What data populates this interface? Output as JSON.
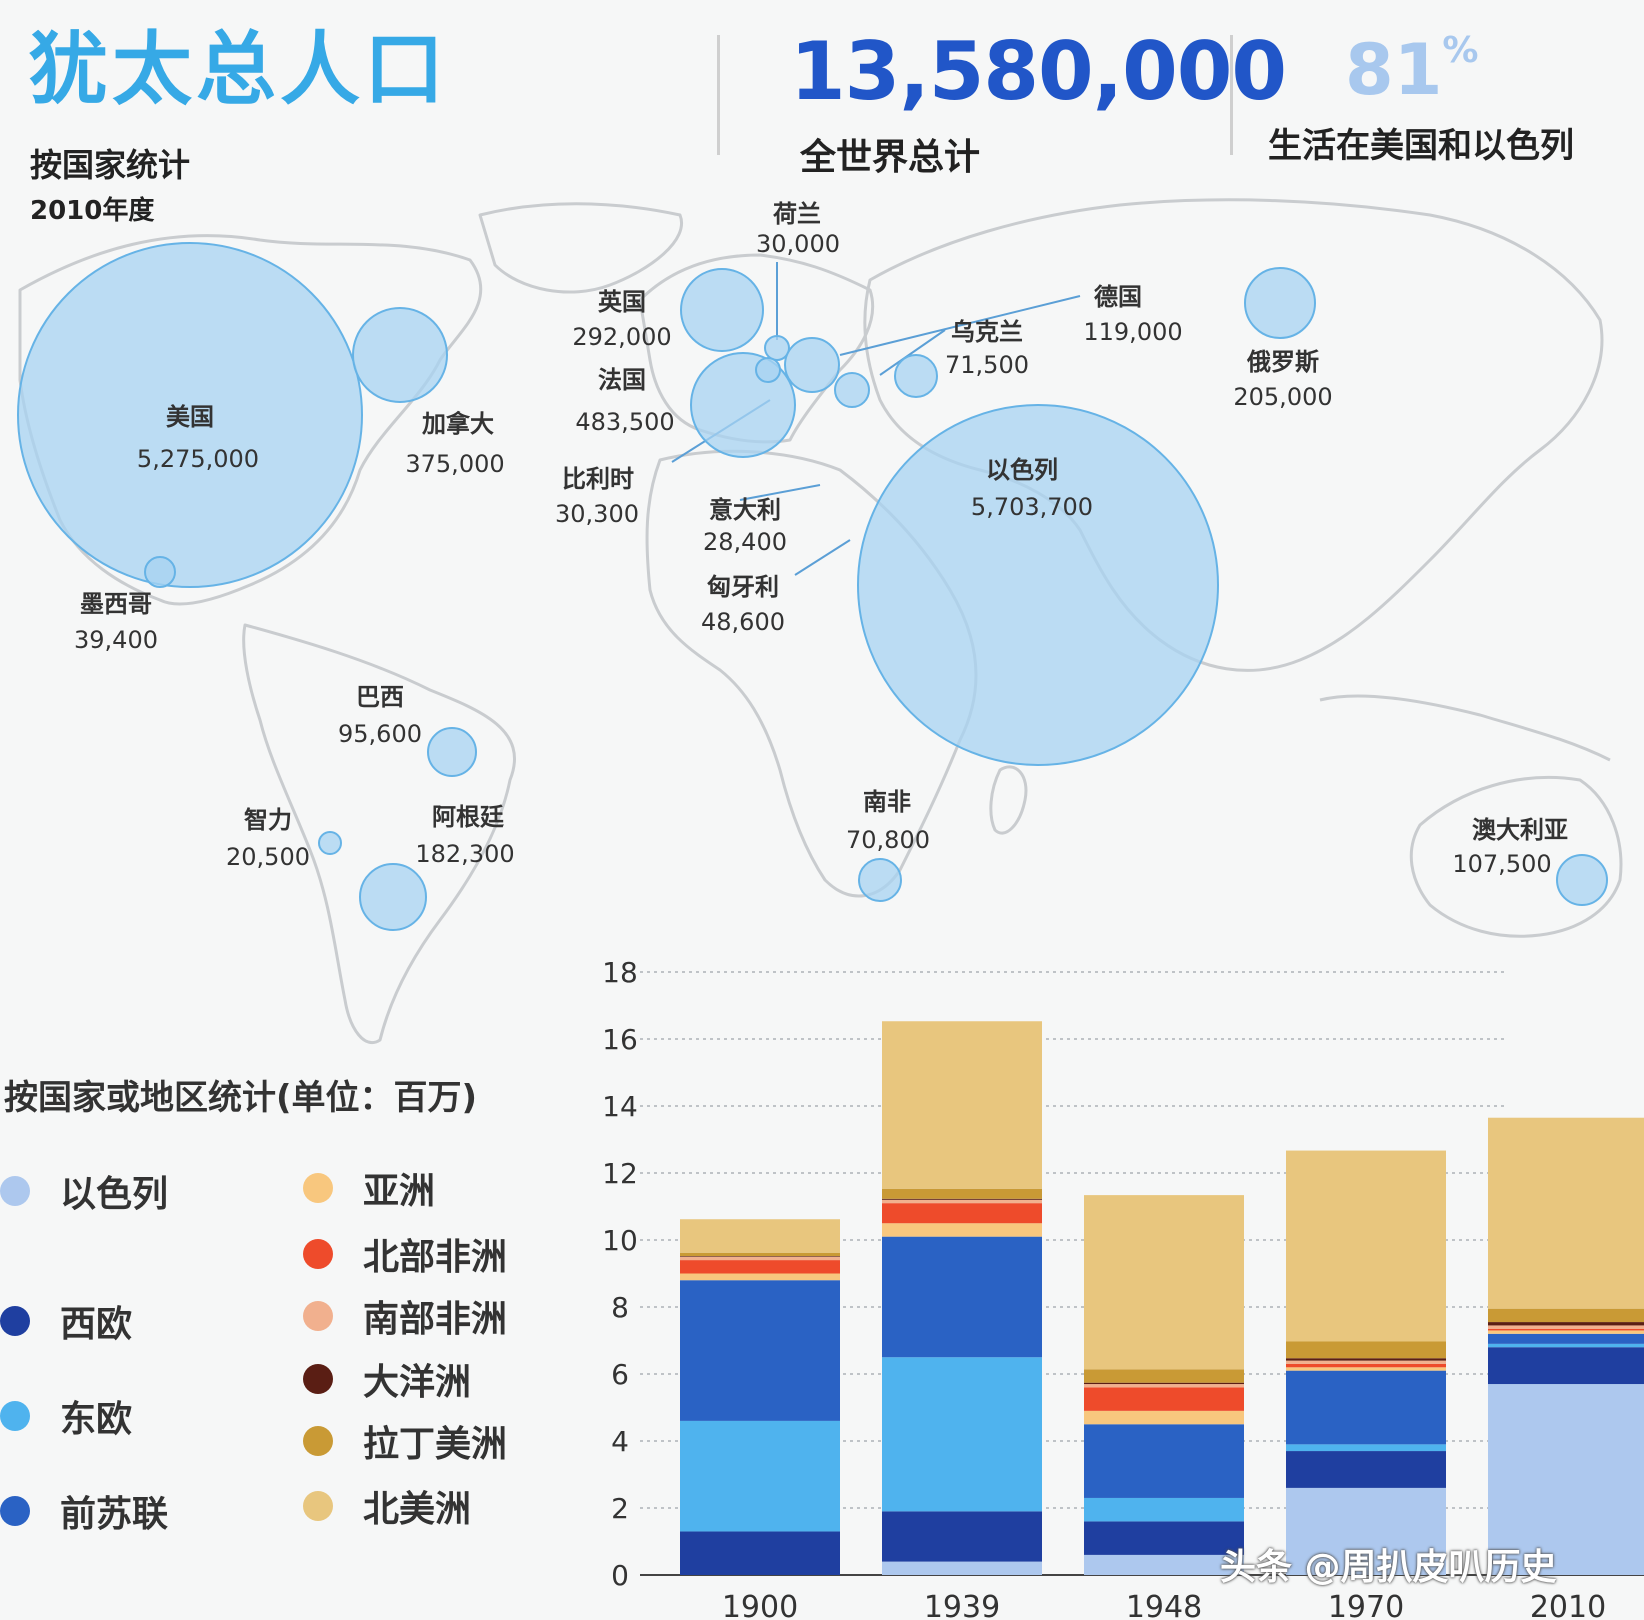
{
  "header": {
    "title": "犹太总人口",
    "subtitle": "按国家统计",
    "year": "2010年度",
    "world_total": "13,580,000",
    "world_total_label": "全世界总计",
    "share_value": "81",
    "share_unit": "%",
    "share_label": "生活在美国和以色列"
  },
  "map": {
    "bubble_color": "#a7d3f2",
    "countries": [
      {
        "name": "美国",
        "value": "5,275,000"
      },
      {
        "name": "加拿大",
        "value": "375,000"
      },
      {
        "name": "墨西哥",
        "value": "39,400"
      },
      {
        "name": "巴西",
        "value": "95,600"
      },
      {
        "name": "智力",
        "value": "20,500"
      },
      {
        "name": "阿根廷",
        "value": "182,300"
      },
      {
        "name": "英国",
        "value": "292,000"
      },
      {
        "name": "法国",
        "value": "483,500"
      },
      {
        "name": "荷兰",
        "value": "30,000"
      },
      {
        "name": "比利时",
        "value": "30,300"
      },
      {
        "name": "意大利",
        "value": "28,400"
      },
      {
        "name": "匈牙利",
        "value": "48,600"
      },
      {
        "name": "德国",
        "value": "119,000"
      },
      {
        "name": "乌克兰",
        "value": "71,500"
      },
      {
        "name": "俄罗斯",
        "value": "205,000"
      },
      {
        "name": "以色列",
        "value": "5,703,700"
      },
      {
        "name": "南非",
        "value": "70,800"
      },
      {
        "name": "澳大利亚",
        "value": "107,500"
      }
    ]
  },
  "legend": {
    "title": "按国家或地区统计(单位：百万)",
    "items": [
      {
        "label": "以色列",
        "color": "#adc8ee"
      },
      {
        "label": "西欧",
        "color": "#1f3fa0"
      },
      {
        "label": "东欧",
        "color": "#4fb3ee"
      },
      {
        "label": "前苏联",
        "color": "#2a62c4"
      },
      {
        "label": "亚洲",
        "color": "#f8c77e"
      },
      {
        "label": "北部非洲",
        "color": "#ee4b2b"
      },
      {
        "label": "南部非洲",
        "color": "#f1b08e"
      },
      {
        "label": "大洋洲",
        "color": "#5a1e14"
      },
      {
        "label": "拉丁美洲",
        "color": "#c99a35"
      },
      {
        "label": "北美洲",
        "color": "#e8c67e"
      }
    ]
  },
  "chart_data": {
    "type": "bar",
    "stacked": true,
    "categories": [
      "1900",
      "1939",
      "1948",
      "1970",
      "2010"
    ],
    "ylim": [
      0,
      18
    ],
    "yticks": [
      "0",
      "2",
      "4",
      "6",
      "8",
      "10",
      "12",
      "14",
      "16",
      "18"
    ],
    "grid": true,
    "series": [
      {
        "name": "以色列",
        "values": [
          0,
          0.4,
          0.6,
          2.6,
          5.7
        ]
      },
      {
        "name": "西欧",
        "values": [
          1.3,
          1.5,
          1.0,
          1.1,
          1.1
        ]
      },
      {
        "name": "东欧",
        "values": [
          3.3,
          4.6,
          0.7,
          0.2,
          0.1
        ]
      },
      {
        "name": "前苏联",
        "values": [
          4.2,
          3.6,
          2.2,
          2.2,
          0.3
        ]
      },
      {
        "name": "亚洲",
        "values": [
          0.2,
          0.4,
          0.4,
          0.1,
          0.1
        ]
      },
      {
        "name": "北部非洲",
        "values": [
          0.4,
          0.6,
          0.7,
          0.1,
          0.05
        ]
      },
      {
        "name": "南部非洲",
        "values": [
          0.1,
          0.1,
          0.1,
          0.1,
          0.1
        ]
      },
      {
        "name": "大洋洲",
        "values": [
          0.02,
          0.03,
          0.04,
          0.07,
          0.1
        ]
      },
      {
        "name": "拉丁美洲",
        "values": [
          0.1,
          0.3,
          0.4,
          0.5,
          0.4
        ]
      },
      {
        "name": "北美洲",
        "values": [
          1.0,
          5.0,
          5.2,
          5.7,
          5.7
        ]
      }
    ]
  },
  "watermark": "头条 @周扒皮叭历史"
}
